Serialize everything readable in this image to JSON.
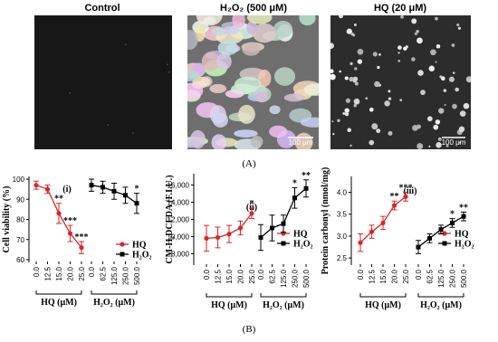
{
  "images": [
    {
      "label": "Control"
    },
    {
      "label": "H₂O₂ (500 μM)",
      "scale_bar": "100 μm"
    },
    {
      "label": "HQ (20 μM)",
      "scale_bar": "100 μm"
    }
  ],
  "panel_a": "(A)",
  "panel_b": "(B)",
  "chart_data": [
    {
      "type": "line",
      "title": "(i)",
      "y_label": "Cell viability (%)",
      "ylim": [
        60,
        100
      ],
      "yticks": [
        60,
        70,
        80,
        90,
        100
      ],
      "series": [
        {
          "name": "HQ",
          "color": "#d62728",
          "marker": "circle",
          "group_label": "HQ (μM)",
          "categories": [
            "0.0",
            "12.5",
            "15.0",
            "20.0",
            "25.0"
          ],
          "values": [
            97,
            95,
            83,
            73,
            66
          ],
          "errors": [
            2,
            2,
            5,
            4,
            3
          ],
          "annotations": [
            null,
            null,
            "**",
            "***",
            "***"
          ]
        },
        {
          "name": "H₂O₂",
          "color": "#000000",
          "marker": "square",
          "group_label": "H₂O₂ (μM)",
          "categories": [
            "0.0",
            "62.5",
            "125.0",
            "250.0",
            "500.0"
          ],
          "values": [
            97,
            96,
            94,
            92,
            88
          ],
          "errors": [
            3,
            3,
            4,
            4,
            5
          ],
          "annotations": [
            null,
            null,
            null,
            null,
            "*"
          ]
        }
      ]
    },
    {
      "type": "line",
      "title": "(ii)",
      "y_label": "CM-H₂DCFDA (F.I.U.)",
      "ylim": [
        7000,
        17000
      ],
      "yticks": [
        {
          "value": 8000,
          "label": "8,000"
        },
        {
          "value": 10000,
          "label": "10,000"
        },
        {
          "value": 12000,
          "label": "12,000"
        },
        {
          "value": 14000,
          "label": "14,000"
        },
        {
          "value": 16000,
          "label": "16,000"
        }
      ],
      "series": [
        {
          "name": "HQ",
          "color": "#d62728",
          "marker": "circle",
          "group_label": "HQ (μM)",
          "categories": [
            "0.0",
            "12.5",
            "15.0",
            "20.0",
            "25.0"
          ],
          "values": [
            9800,
            9900,
            10300,
            11000,
            12700
          ],
          "errors": [
            1500,
            1200,
            1000,
            800,
            600
          ],
          "annotations": [
            null,
            null,
            null,
            null,
            "*"
          ]
        },
        {
          "name": "H₂O₂",
          "color": "#000000",
          "marker": "square",
          "group_label": "H₂O₂ (μM)",
          "categories": [
            "0.0",
            "62.5",
            "125.0",
            "250.0",
            "500.0"
          ],
          "values": [
            9900,
            11000,
            11500,
            14500,
            15600
          ],
          "errors": [
            1500,
            1500,
            1000,
            1200,
            1000
          ],
          "annotations": [
            null,
            null,
            null,
            "*",
            "**"
          ]
        }
      ]
    },
    {
      "type": "line",
      "title": "(iii)",
      "y_label": "Protein carbonyl (nmol/mg)",
      "ylim": [
        2.4,
        4.3
      ],
      "yticks": [
        2.5,
        {
          "value": 3,
          "label": "3.0"
        },
        3.5,
        {
          "value": 4,
          "label": "4.0"
        }
      ],
      "series": [
        {
          "name": "HQ",
          "color": "#d62728",
          "marker": "circle",
          "group_label": "HQ (μM)",
          "categories": [
            "0.0",
            "12.5",
            "15.0",
            "20.0",
            "25.0"
          ],
          "values": [
            2.85,
            3.1,
            3.3,
            3.7,
            3.9
          ],
          "errors": [
            0.2,
            0.15,
            0.15,
            0.1,
            0.1
          ],
          "annotations": [
            null,
            null,
            null,
            "**",
            "***"
          ]
        },
        {
          "name": "H₂O₂",
          "color": "#000000",
          "marker": "square",
          "group_label": "H₂O₂ (μM)",
          "categories": [
            "0.0",
            "62.5",
            "125.0",
            "250.0",
            "500.0"
          ],
          "values": [
            2.75,
            2.95,
            3.15,
            3.3,
            3.45
          ],
          "errors": [
            0.15,
            0.1,
            0.1,
            0.1,
            0.1
          ],
          "annotations": [
            null,
            null,
            null,
            "*",
            "**"
          ]
        }
      ]
    }
  ]
}
